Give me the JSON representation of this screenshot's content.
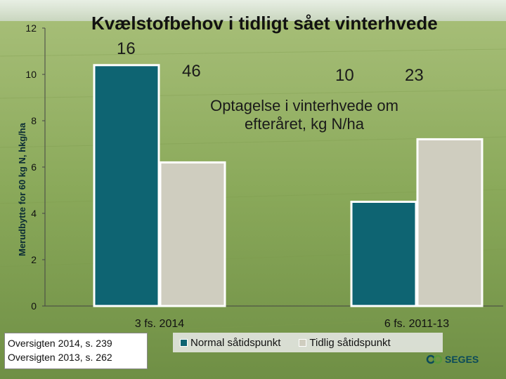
{
  "chart_data": {
    "type": "bar",
    "title": "Kvælstofbehov i tidligt sået vinterhvede",
    "ylabel": "Merudbytte for 60 kg N, hkg/ha",
    "xlabel": "",
    "ylim": [
      0,
      12
    ],
    "yticks": [
      "0",
      "2",
      "4",
      "6",
      "8",
      "10",
      "12"
    ],
    "categories": [
      "3 fs. 2014",
      "6 fs. 2011-13"
    ],
    "series": [
      {
        "name": "Normal såtidspunkt",
        "values": [
          10.4,
          4.5
        ],
        "color": "#0e6472"
      },
      {
        "name": "Tidlig såtidspunkt",
        "values": [
          6.2,
          7.2
        ],
        "color": "#cfcdbf"
      }
    ],
    "annotations": {
      "bar_label_1": "16",
      "bar_label_2": "46",
      "bar_label_3": "10",
      "bar_label_4": "23",
      "note": "Optagelse i vinterhvede om efteråret, kg N/ha"
    },
    "legend_position": "bottom",
    "grid": false
  },
  "references": {
    "line1": "Oversigten 2014, s. 239",
    "line2": "Oversigten 2013, s. 262"
  },
  "logo_text": "SEGES"
}
